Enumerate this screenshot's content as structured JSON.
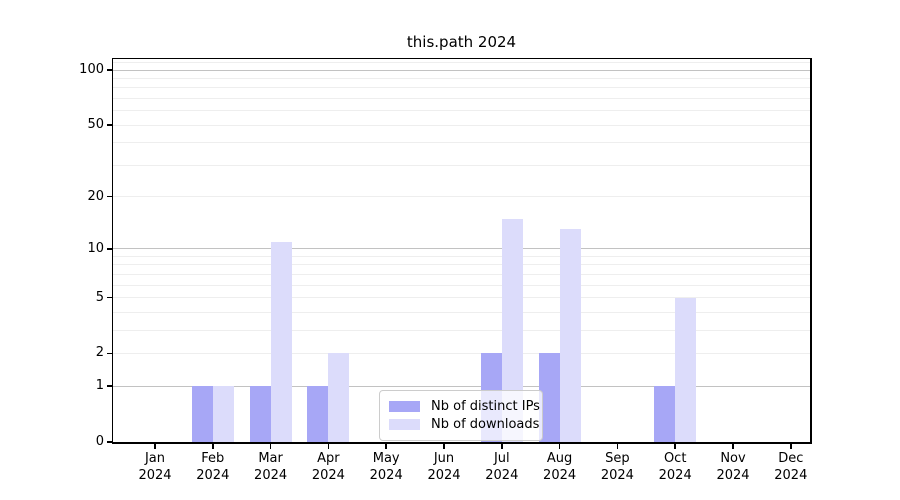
{
  "chart_data": {
    "type": "bar",
    "title": "this.path 2024",
    "xlabel": "",
    "ylabel": "",
    "categories": [
      "Jan 2024",
      "Feb 2024",
      "Mar 2024",
      "Apr 2024",
      "May 2024",
      "Jun 2024",
      "Jul 2024",
      "Aug 2024",
      "Sep 2024",
      "Oct 2024",
      "Nov 2024",
      "Dec 2024"
    ],
    "series": [
      {
        "name": "Nb of distinct IPs",
        "color": "#a7a7f6",
        "values": [
          0,
          1,
          1,
          1,
          0,
          0,
          2,
          2,
          0,
          1,
          0,
          0
        ]
      },
      {
        "name": "Nb of downloads",
        "color": "#dcdcfb",
        "values": [
          0,
          1,
          11,
          2,
          0,
          0,
          15,
          13,
          0,
          5,
          0,
          0
        ]
      }
    ],
    "yscale": "log1p",
    "ylim": [
      0,
      115
    ],
    "yticks": [
      0,
      1,
      2,
      5,
      10,
      20,
      50,
      100
    ],
    "major_gridlines": [
      1,
      10,
      100
    ],
    "minor_gridlines": [
      2,
      3,
      4,
      5,
      6,
      7,
      8,
      9,
      20,
      30,
      40,
      50,
      60,
      70,
      80,
      90,
      110
    ],
    "grid": true,
    "legend_position": "lower center"
  }
}
